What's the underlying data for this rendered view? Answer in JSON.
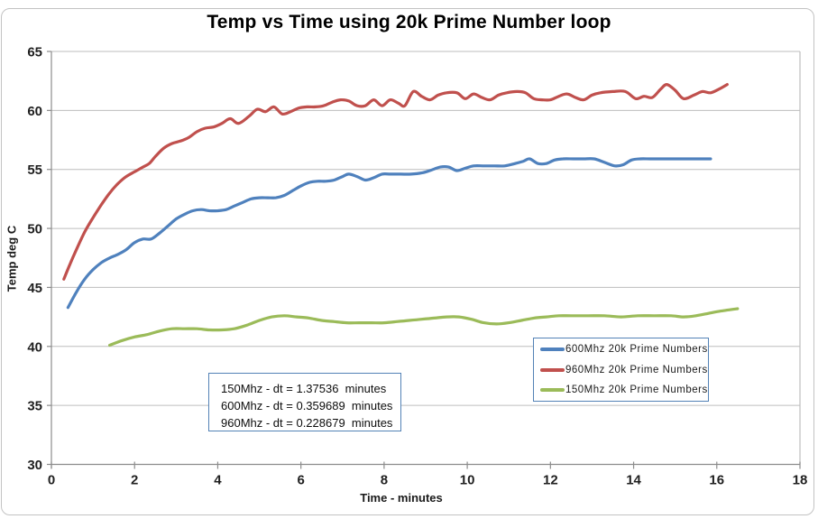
{
  "title": "Temp vs Time using 20k Prime Number loop",
  "annotation": {
    "lines": [
      "150Mhz - dt = 1.37536  minutes",
      "600Mhz - dt = 0.359689  minutes",
      "960Mhz - dt = 0.228679  minutes"
    ]
  },
  "colors": {
    "series_600": "#4F81BD",
    "series_960": "#C0504D",
    "series_150": "#9BBB59",
    "gridline": "#bdbdbd",
    "axis": "#8c8c8c",
    "tick_label": "#1f1f1f",
    "box_border": "#5382b6"
  },
  "chart_data": {
    "type": "line",
    "title": "Temp vs Time using 20k Prime Number loop",
    "xlabel": "Time - minutes",
    "ylabel": "Temp deg C",
    "xlim": [
      0,
      18
    ],
    "ylim": [
      30,
      65
    ],
    "xticks": [
      0,
      2,
      4,
      6,
      8,
      10,
      12,
      14,
      16,
      18
    ],
    "yticks": [
      30,
      35,
      40,
      45,
      50,
      55,
      60,
      65
    ],
    "grid": "horizontal",
    "legend_position": "inside lower right",
    "series": [
      {
        "name": "600Mhz 20k Prime Numbers",
        "color": "#4F81BD",
        "points": [
          [
            0.4,
            43.3
          ],
          [
            0.6,
            44.6
          ],
          [
            0.8,
            45.7
          ],
          [
            1.0,
            46.5
          ],
          [
            1.2,
            47.1
          ],
          [
            1.4,
            47.5
          ],
          [
            1.6,
            47.8
          ],
          [
            1.8,
            48.2
          ],
          [
            2.0,
            48.8
          ],
          [
            2.2,
            49.1
          ],
          [
            2.4,
            49.1
          ],
          [
            2.6,
            49.6
          ],
          [
            2.8,
            50.2
          ],
          [
            3.0,
            50.8
          ],
          [
            3.2,
            51.2
          ],
          [
            3.4,
            51.5
          ],
          [
            3.6,
            51.6
          ],
          [
            3.8,
            51.5
          ],
          [
            4.0,
            51.5
          ],
          [
            4.2,
            51.6
          ],
          [
            4.4,
            51.9
          ],
          [
            4.6,
            52.2
          ],
          [
            4.8,
            52.5
          ],
          [
            5.0,
            52.6
          ],
          [
            5.2,
            52.6
          ],
          [
            5.4,
            52.6
          ],
          [
            5.6,
            52.8
          ],
          [
            5.8,
            53.2
          ],
          [
            6.0,
            53.6
          ],
          [
            6.2,
            53.9
          ],
          [
            6.4,
            54.0
          ],
          [
            6.6,
            54.0
          ],
          [
            6.8,
            54.1
          ],
          [
            7.0,
            54.4
          ],
          [
            7.15,
            54.6
          ],
          [
            7.35,
            54.4
          ],
          [
            7.55,
            54.1
          ],
          [
            7.75,
            54.3
          ],
          [
            7.95,
            54.6
          ],
          [
            8.15,
            54.6
          ],
          [
            8.4,
            54.6
          ],
          [
            8.65,
            54.6
          ],
          [
            8.9,
            54.7
          ],
          [
            9.1,
            54.9
          ],
          [
            9.35,
            55.2
          ],
          [
            9.55,
            55.2
          ],
          [
            9.75,
            54.9
          ],
          [
            9.95,
            55.1
          ],
          [
            10.15,
            55.3
          ],
          [
            10.4,
            55.3
          ],
          [
            10.65,
            55.3
          ],
          [
            10.9,
            55.3
          ],
          [
            11.15,
            55.5
          ],
          [
            11.35,
            55.7
          ],
          [
            11.5,
            55.9
          ],
          [
            11.7,
            55.5
          ],
          [
            11.9,
            55.5
          ],
          [
            12.1,
            55.8
          ],
          [
            12.3,
            55.9
          ],
          [
            12.55,
            55.9
          ],
          [
            12.8,
            55.9
          ],
          [
            13.05,
            55.9
          ],
          [
            13.3,
            55.6
          ],
          [
            13.55,
            55.3
          ],
          [
            13.75,
            55.4
          ],
          [
            13.95,
            55.8
          ],
          [
            14.15,
            55.9
          ],
          [
            14.4,
            55.9
          ],
          [
            14.7,
            55.9
          ],
          [
            15.0,
            55.9
          ],
          [
            15.3,
            55.9
          ],
          [
            15.6,
            55.9
          ],
          [
            15.85,
            55.9
          ]
        ]
      },
      {
        "name": "960Mhz 20k Prime Numbers",
        "color": "#C0504D",
        "points": [
          [
            0.3,
            45.7
          ],
          [
            0.45,
            47.0
          ],
          [
            0.6,
            48.2
          ],
          [
            0.8,
            49.7
          ],
          [
            1.0,
            50.9
          ],
          [
            1.2,
            52.0
          ],
          [
            1.4,
            53.0
          ],
          [
            1.6,
            53.8
          ],
          [
            1.8,
            54.4
          ],
          [
            2.0,
            54.8
          ],
          [
            2.2,
            55.2
          ],
          [
            2.35,
            55.5
          ],
          [
            2.5,
            56.1
          ],
          [
            2.7,
            56.8
          ],
          [
            2.9,
            57.2
          ],
          [
            3.1,
            57.4
          ],
          [
            3.3,
            57.7
          ],
          [
            3.5,
            58.2
          ],
          [
            3.7,
            58.5
          ],
          [
            3.9,
            58.6
          ],
          [
            4.1,
            58.9
          ],
          [
            4.3,
            59.3
          ],
          [
            4.5,
            58.9
          ],
          [
            4.75,
            59.5
          ],
          [
            4.95,
            60.1
          ],
          [
            5.15,
            59.9
          ],
          [
            5.35,
            60.3
          ],
          [
            5.55,
            59.7
          ],
          [
            5.75,
            59.9
          ],
          [
            5.95,
            60.2
          ],
          [
            6.15,
            60.3
          ],
          [
            6.35,
            60.3
          ],
          [
            6.55,
            60.4
          ],
          [
            6.75,
            60.7
          ],
          [
            6.95,
            60.9
          ],
          [
            7.15,
            60.8
          ],
          [
            7.35,
            60.4
          ],
          [
            7.55,
            60.4
          ],
          [
            7.75,
            60.9
          ],
          [
            7.95,
            60.4
          ],
          [
            8.15,
            60.9
          ],
          [
            8.35,
            60.6
          ],
          [
            8.5,
            60.4
          ],
          [
            8.7,
            61.6
          ],
          [
            8.9,
            61.2
          ],
          [
            9.1,
            60.9
          ],
          [
            9.3,
            61.3
          ],
          [
            9.5,
            61.5
          ],
          [
            9.75,
            61.5
          ],
          [
            9.95,
            61.0
          ],
          [
            10.15,
            61.4
          ],
          [
            10.35,
            61.1
          ],
          [
            10.55,
            60.9
          ],
          [
            10.75,
            61.3
          ],
          [
            10.95,
            61.5
          ],
          [
            11.2,
            61.6
          ],
          [
            11.4,
            61.5
          ],
          [
            11.6,
            61.0
          ],
          [
            11.8,
            60.9
          ],
          [
            12.0,
            60.9
          ],
          [
            12.2,
            61.2
          ],
          [
            12.4,
            61.4
          ],
          [
            12.6,
            61.1
          ],
          [
            12.8,
            60.9
          ],
          [
            13.0,
            61.3
          ],
          [
            13.2,
            61.5
          ],
          [
            13.5,
            61.6
          ],
          [
            13.8,
            61.6
          ],
          [
            14.05,
            61.0
          ],
          [
            14.25,
            61.2
          ],
          [
            14.45,
            61.1
          ],
          [
            14.65,
            61.8
          ],
          [
            14.8,
            62.2
          ],
          [
            15.0,
            61.7
          ],
          [
            15.2,
            61.0
          ],
          [
            15.45,
            61.3
          ],
          [
            15.65,
            61.6
          ],
          [
            15.85,
            61.5
          ],
          [
            16.05,
            61.8
          ],
          [
            16.25,
            62.2
          ]
        ]
      },
      {
        "name": "150Mhz 20k Prime Numbers",
        "color": "#9BBB59",
        "points": [
          [
            1.4,
            40.1
          ],
          [
            1.7,
            40.5
          ],
          [
            2.0,
            40.8
          ],
          [
            2.3,
            41.0
          ],
          [
            2.6,
            41.3
          ],
          [
            2.9,
            41.5
          ],
          [
            3.2,
            41.5
          ],
          [
            3.5,
            41.5
          ],
          [
            3.8,
            41.4
          ],
          [
            4.1,
            41.4
          ],
          [
            4.4,
            41.5
          ],
          [
            4.7,
            41.8
          ],
          [
            5.0,
            42.2
          ],
          [
            5.3,
            42.5
          ],
          [
            5.6,
            42.6
          ],
          [
            5.9,
            42.5
          ],
          [
            6.2,
            42.4
          ],
          [
            6.5,
            42.2
          ],
          [
            6.8,
            42.1
          ],
          [
            7.1,
            42.0
          ],
          [
            7.4,
            42.0
          ],
          [
            7.7,
            42.0
          ],
          [
            8.0,
            42.0
          ],
          [
            8.3,
            42.1
          ],
          [
            8.6,
            42.2
          ],
          [
            8.9,
            42.3
          ],
          [
            9.2,
            42.4
          ],
          [
            9.5,
            42.5
          ],
          [
            9.8,
            42.5
          ],
          [
            10.1,
            42.3
          ],
          [
            10.4,
            42.0
          ],
          [
            10.7,
            41.9
          ],
          [
            11.0,
            42.0
          ],
          [
            11.3,
            42.2
          ],
          [
            11.6,
            42.4
          ],
          [
            11.9,
            42.5
          ],
          [
            12.2,
            42.6
          ],
          [
            12.5,
            42.6
          ],
          [
            12.9,
            42.6
          ],
          [
            13.3,
            42.6
          ],
          [
            13.7,
            42.5
          ],
          [
            14.1,
            42.6
          ],
          [
            14.5,
            42.6
          ],
          [
            14.9,
            42.6
          ],
          [
            15.2,
            42.5
          ],
          [
            15.5,
            42.6
          ],
          [
            15.8,
            42.8
          ],
          [
            16.1,
            43.0
          ],
          [
            16.5,
            43.2
          ]
        ]
      }
    ]
  }
}
